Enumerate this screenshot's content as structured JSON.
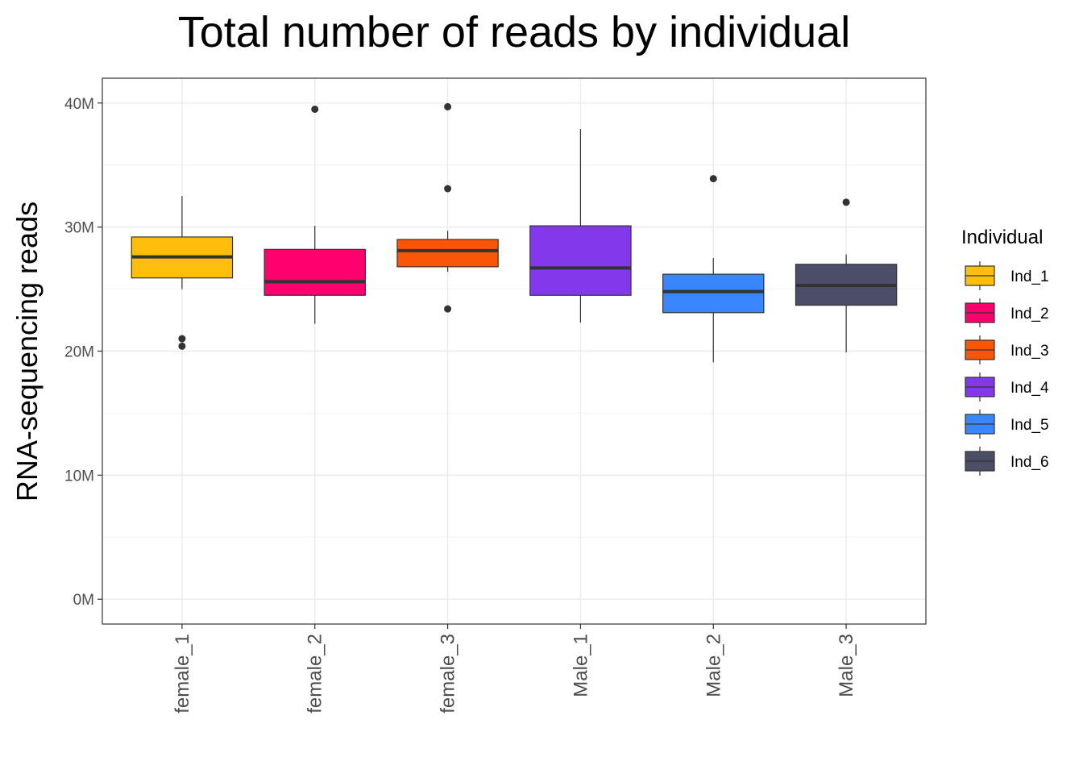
{
  "chart_data": {
    "type": "boxplot",
    "title": "Total number of reads by individual",
    "xlabel": "",
    "ylabel": "RNA-sequencing reads",
    "ylim": [
      -2000000,
      42000000
    ],
    "y_ticks": [
      0,
      10000000,
      20000000,
      30000000,
      40000000
    ],
    "y_tick_labels": [
      "0M",
      "10M",
      "20M",
      "30M",
      "40M"
    ],
    "grid": true,
    "x_tick_rotation": "vertical",
    "legend": {
      "title": "Individual",
      "placement": "right",
      "entries": [
        "Ind_1",
        "Ind_2",
        "Ind_3",
        "Ind_4",
        "Ind_5",
        "Ind_6"
      ]
    },
    "categories": [
      "female_1",
      "female_2",
      "female_3",
      "Male_1",
      "Male_2",
      "Male_3"
    ],
    "series": [
      {
        "name": "Ind_1",
        "category": "female_1",
        "color": "#FFBE0B",
        "whisker_low": 25000000,
        "q1": 25900000,
        "median": 27600000,
        "q3": 29200000,
        "whisker_high": 32500000,
        "outliers": [
          21000000,
          20400000
        ]
      },
      {
        "name": "Ind_2",
        "category": "female_2",
        "color": "#FF006E",
        "whisker_low": 22200000,
        "q1": 24500000,
        "median": 25600000,
        "q3": 28200000,
        "whisker_high": 30100000,
        "outliers": [
          39500000
        ]
      },
      {
        "name": "Ind_3",
        "category": "female_3",
        "color": "#FB5607",
        "whisker_low": 26400000,
        "q1": 26800000,
        "median": 28100000,
        "q3": 29000000,
        "whisker_high": 29700000,
        "outliers": [
          39700000,
          33100000,
          23400000
        ]
      },
      {
        "name": "Ind_4",
        "category": "Male_1",
        "color": "#8338EC",
        "whisker_low": 22300000,
        "q1": 24500000,
        "median": 26700000,
        "q3": 30100000,
        "whisker_high": 37900000,
        "outliers": []
      },
      {
        "name": "Ind_5",
        "category": "Male_2",
        "color": "#3A86FF",
        "whisker_low": 19100000,
        "q1": 23100000,
        "median": 24800000,
        "q3": 26200000,
        "whisker_high": 27500000,
        "outliers": [
          33900000
        ]
      },
      {
        "name": "Ind_6",
        "category": "Male_3",
        "color": "#4C4E69",
        "whisker_low": 19900000,
        "q1": 23700000,
        "median": 25300000,
        "q3": 27000000,
        "whisker_high": 27800000,
        "outliers": [
          32000000
        ]
      }
    ]
  }
}
